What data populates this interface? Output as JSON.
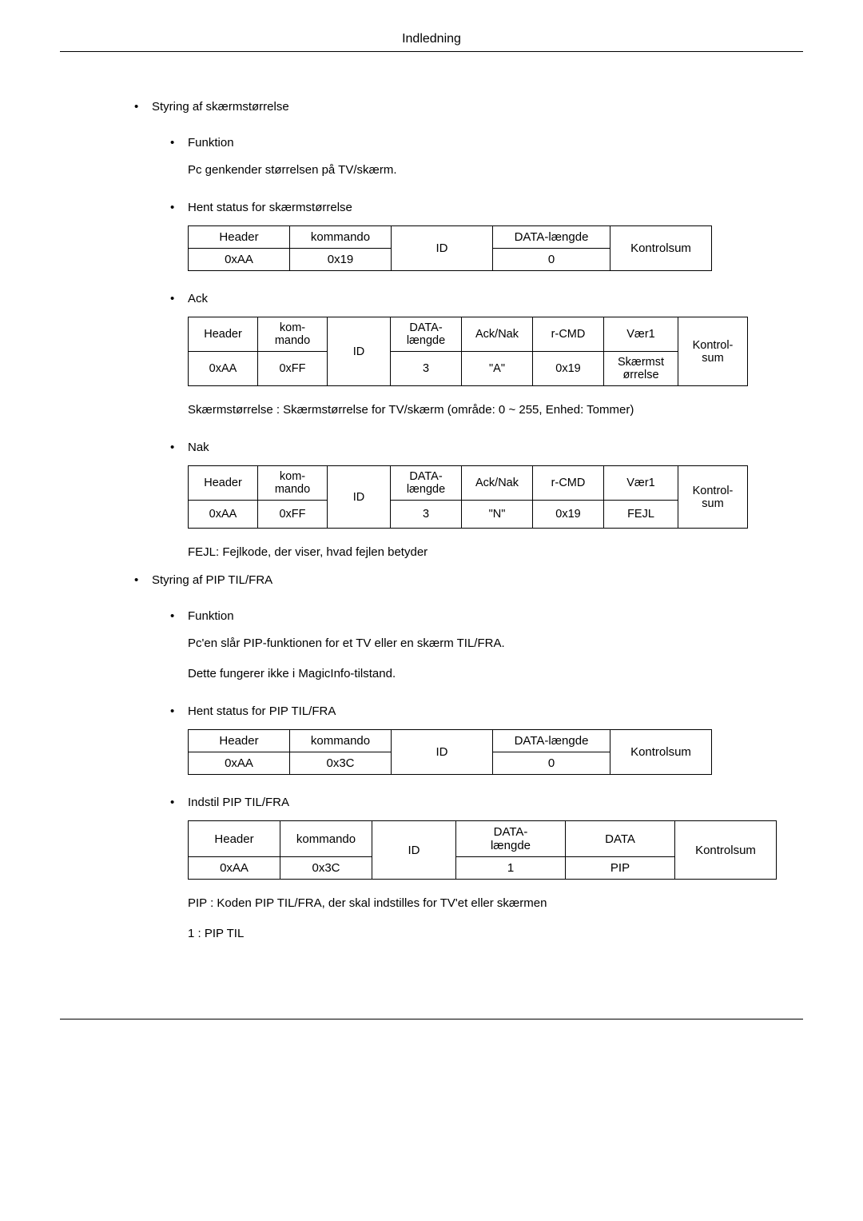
{
  "page_header": "Indledning",
  "sections": [
    {
      "title": "Styring af skærmstørrelse",
      "subs": [
        {
          "label": "Funktion",
          "desc": "Pc genkender størrelsen på TV/skærm."
        },
        {
          "label": "Hent status for skærmstørrelse"
        },
        {
          "label": "Ack"
        },
        {
          "label": "Nak"
        }
      ]
    },
    {
      "title": "Styring af PIP TIL/FRA",
      "subs": [
        {
          "label": "Funktion",
          "desc1": "Pc'en slår PIP-funktionen for et TV eller en skærm TIL/FRA.",
          "desc2": "Dette fungerer ikke i MagicInfo-tilstand."
        },
        {
          "label": "Hent status for PIP TIL/FRA"
        },
        {
          "label": "Indstil PIP TIL/FRA"
        }
      ]
    }
  ],
  "status_size_table": {
    "h": [
      "Header",
      "kommando",
      "ID",
      "DATA-længde",
      "Kontrolsum"
    ],
    "r": [
      "0xAA",
      "0x19",
      "",
      "0",
      ""
    ]
  },
  "ack_table": {
    "h": [
      "Header",
      "kom-\nmando",
      "ID",
      "DATA-\nlængde",
      "Ack/Nak",
      "r-CMD",
      "Vær1",
      "Kontrol-\nsum"
    ],
    "r": [
      "0xAA",
      "0xFF",
      "",
      "3",
      "\"A\"",
      "0x19",
      "Skærmst\nørrelse",
      ""
    ]
  },
  "ack_note": "Skærmstørrelse : Skærmstørrelse for TV/skærm (område: 0 ~ 255, Enhed: Tommer)",
  "nak_table": {
    "h": [
      "Header",
      "kom-\nmando",
      "ID",
      "DATA-\nlængde",
      "Ack/Nak",
      "r-CMD",
      "Vær1",
      "Kontrol-\nsum"
    ],
    "r": [
      "0xAA",
      "0xFF",
      "",
      "3",
      "\"N\"",
      "0x19",
      "FEJL",
      ""
    ]
  },
  "nak_note": "FEJL: Fejlkode, der viser, hvad fejlen betyder",
  "status_pip_table": {
    "h": [
      "Header",
      "kommando",
      "ID",
      "DATA-længde",
      "Kontrolsum"
    ],
    "r": [
      "0xAA",
      "0x3C",
      "",
      "0",
      ""
    ]
  },
  "set_pip_table": {
    "h": [
      "Header",
      "kommando",
      "ID",
      "DATA-\nlængde",
      "DATA",
      "Kontrolsum"
    ],
    "r": [
      "0xAA",
      "0x3C",
      "",
      "1",
      "PIP",
      ""
    ]
  },
  "pip_note": "PIP : Koden PIP TIL/FRA, der skal indstilles for TV'et eller skærmen",
  "pip_on": "1 : PIP TIL"
}
